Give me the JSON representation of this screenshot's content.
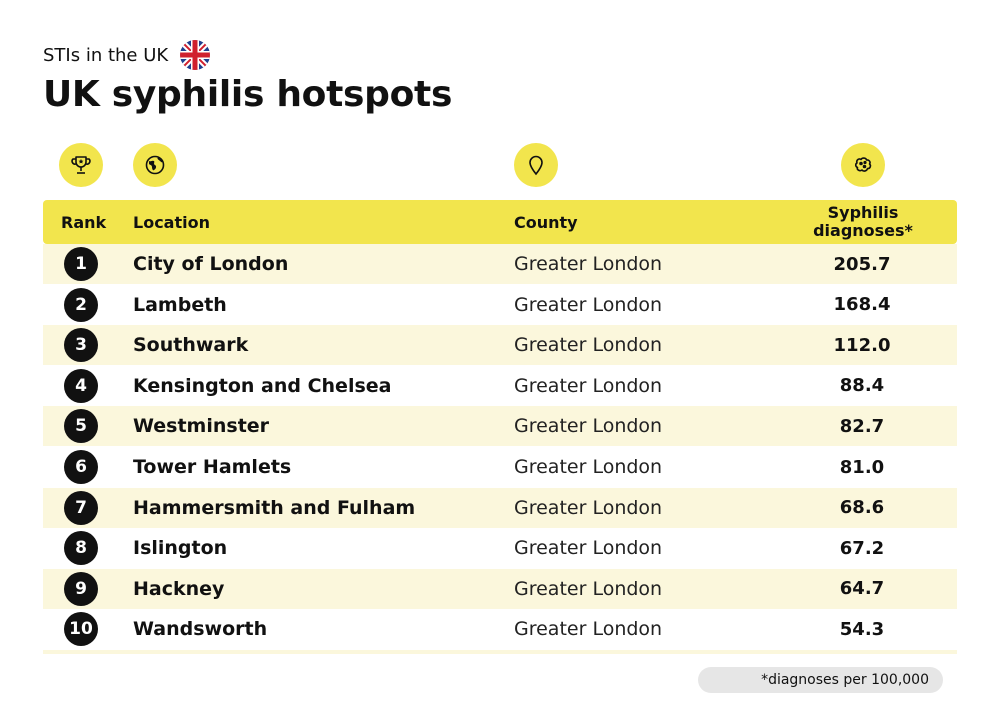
{
  "kicker": "STIs in the UK",
  "title": "UK syphilis hotspots",
  "colors": {
    "accent": "#f2e54d",
    "row_alt": "#fbf7dc",
    "badge": "#111111",
    "footnote_bg": "#e6e6e6"
  },
  "icons": [
    "trophy-icon",
    "globe-icon",
    "location-pin-icon",
    "bacteria-icon"
  ],
  "headers": {
    "rank": "Rank",
    "location": "Location",
    "county": "County",
    "diagnoses_line1": "Syphilis",
    "diagnoses_line2": "diagnoses*"
  },
  "footnote": "*diagnoses per 100,000",
  "chart_data": {
    "type": "table",
    "columns": [
      "Rank",
      "Location",
      "County",
      "Syphilis diagnoses*"
    ],
    "rows": [
      {
        "rank": "1",
        "location": "City of London",
        "county": "Greater London",
        "value": "205.7"
      },
      {
        "rank": "2",
        "location": "Lambeth",
        "county": "Greater London",
        "value": "168.4"
      },
      {
        "rank": "3",
        "location": "Southwark",
        "county": "Greater London",
        "value": "112.0"
      },
      {
        "rank": "4",
        "location": "Kensington and Chelsea",
        "county": "Greater London",
        "value": "88.4"
      },
      {
        "rank": "5",
        "location": "Westminster",
        "county": "Greater London",
        "value": "82.7"
      },
      {
        "rank": "6",
        "location": "Tower Hamlets",
        "county": "Greater London",
        "value": "81.0"
      },
      {
        "rank": "7",
        "location": "Hammersmith and Fulham",
        "county": "Greater London",
        "value": "68.6"
      },
      {
        "rank": "8",
        "location": "Islington",
        "county": "Greater London",
        "value": "67.2"
      },
      {
        "rank": "9",
        "location": "Hackney",
        "county": "Greater London",
        "value": "64.7"
      },
      {
        "rank": "10",
        "location": "Wandsworth",
        "county": "Greater London",
        "value": "54.3"
      }
    ]
  }
}
